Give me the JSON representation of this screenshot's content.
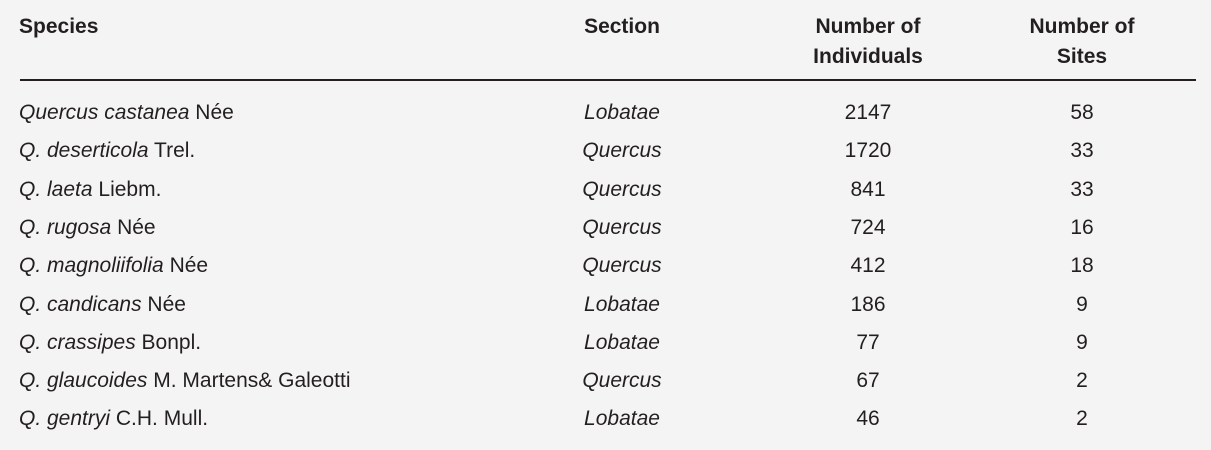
{
  "headers": {
    "species": "Species",
    "section": "Section",
    "individuals": [
      "Number of",
      "Individuals"
    ],
    "sites": [
      "Number of",
      "Sites"
    ]
  },
  "rows": [
    {
      "genus_species": "Quercus castanea",
      "authority": "Née",
      "section": "Lobatae",
      "individuals": "2147",
      "sites": "58"
    },
    {
      "genus_species": "Q. deserticola",
      "authority": "Trel.",
      "section": "Quercus",
      "individuals": "1720",
      "sites": "33"
    },
    {
      "genus_species": "Q. laeta",
      "authority": "Liebm.",
      "section": "Quercus",
      "individuals": "841",
      "sites": "33"
    },
    {
      "genus_species": "Q. rugosa",
      "authority": "Née",
      "section": "Quercus",
      "individuals": "724",
      "sites": "16"
    },
    {
      "genus_species": "Q. magnoliifolia",
      "authority": "Née",
      "section": "Quercus",
      "individuals": "412",
      "sites": "18"
    },
    {
      "genus_species": "Q. candicans",
      "authority": "Née",
      "section": "Lobatae",
      "individuals": "186",
      "sites": "9"
    },
    {
      "genus_species": "Q. crassipes",
      "authority": "Bonpl.",
      "section": "Lobatae",
      "individuals": "77",
      "sites": "9"
    },
    {
      "genus_species": "Q. glaucoides",
      "authority": "M. Martens& Galeotti",
      "section": "Quercus",
      "individuals": "67",
      "sites": "2"
    },
    {
      "genus_species": "Q. gentryi",
      "authority": "C.H. Mull.",
      "section": "Lobatae",
      "individuals": "46",
      "sites": "2"
    }
  ]
}
